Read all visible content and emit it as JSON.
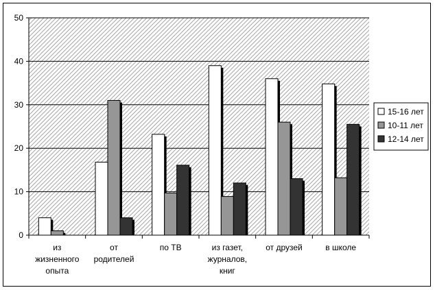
{
  "chart_data": {
    "type": "bar",
    "title": "",
    "xlabel": "",
    "ylabel": "",
    "ylim": [
      0,
      50
    ],
    "yticks": [
      0,
      10,
      20,
      30,
      40,
      50
    ],
    "grid": true,
    "legend_position": "right",
    "categories": [
      [
        "из",
        "жизненного",
        "опыта"
      ],
      [
        "от",
        "родителей"
      ],
      [
        "по ТВ"
      ],
      [
        "из газет,",
        "журналов,",
        "книг"
      ],
      [
        "от друзей"
      ],
      [
        "в школе"
      ]
    ],
    "series": [
      {
        "name": "15-16 лет",
        "color": "#ffffff",
        "values": [
          4,
          16.8,
          23.2,
          39,
          36,
          34.8
        ]
      },
      {
        "name": "10-11 лет",
        "color": "#969696",
        "values": [
          1,
          31,
          9.7,
          8.9,
          26,
          13.2
        ]
      },
      {
        "name": "12-14 лет",
        "color": "#333333",
        "values": [
          0,
          4,
          16.1,
          12,
          13,
          25.5
        ]
      }
    ]
  }
}
